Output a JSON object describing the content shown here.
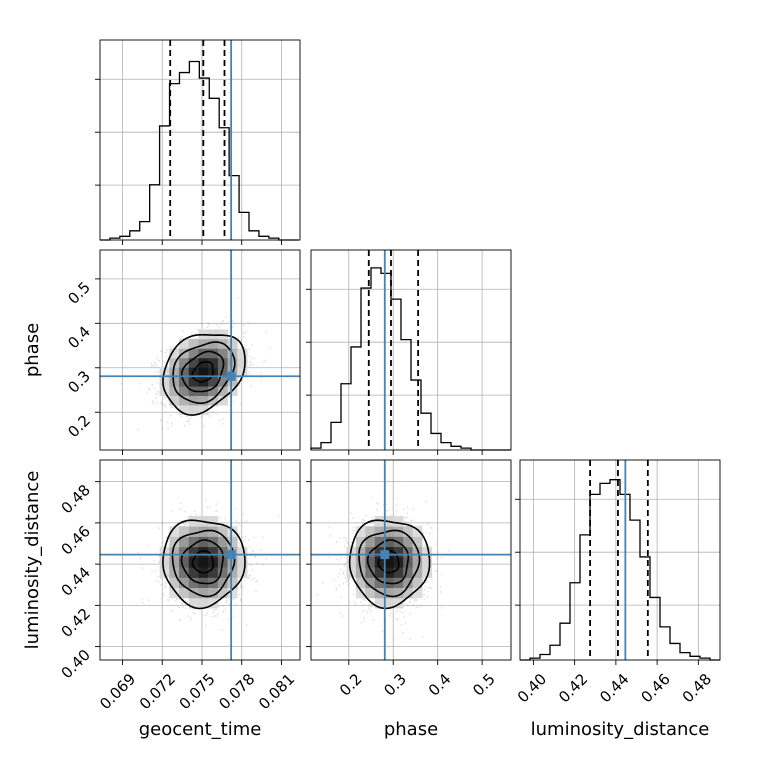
{
  "chart_data": {
    "type": "corner",
    "parameters": [
      "geocent_time",
      "phase",
      "luminosity_distance"
    ],
    "truths": {
      "geocent_time": 0.0772,
      "phase": 0.281,
      "luminosity_distance": 0.4446
    },
    "quantiles": {
      "geocent_time": [
        0.0726,
        0.0751,
        0.0767
      ],
      "phase": [
        0.245,
        0.295,
        0.356
      ],
      "luminosity_distance": [
        0.4275,
        0.441,
        0.4555
      ]
    },
    "axes": {
      "geocent_time": {
        "range": [
          0.0673,
          0.0824
        ],
        "ticks": [
          "0.069",
          "0.072",
          "0.075",
          "0.078",
          "0.081"
        ]
      },
      "phase": {
        "range": [
          0.115,
          0.565
        ],
        "ticks": [
          "0.2",
          "0.3",
          "0.4",
          "0.5"
        ]
      },
      "luminosity_distance": {
        "range": [
          0.3935,
          0.4905
        ],
        "ticks": [
          "0.40",
          "0.42",
          "0.44",
          "0.46",
          "0.48"
        ]
      }
    },
    "histograms": {
      "geocent_time": {
        "edges": [
          0.0673,
          0.06805,
          0.0688,
          0.06955,
          0.0703,
          0.07105,
          0.0718,
          0.07255,
          0.0733,
          0.07405,
          0.0748,
          0.07555,
          0.0763,
          0.07705,
          0.0778,
          0.07855,
          0.0793,
          0.08005,
          0.0808,
          0.08155,
          0.0823
        ],
        "counts": [
          0,
          0.01,
          0.02,
          0.05,
          0.1,
          0.3,
          0.62,
          0.85,
          0.91,
          0.97,
          0.88,
          0.77,
          0.61,
          0.35,
          0.15,
          0.05,
          0.02,
          0.01,
          0.0,
          0
        ]
      },
      "phase": {
        "edges": [
          0.115,
          0.1375,
          0.16,
          0.1825,
          0.205,
          0.2275,
          0.25,
          0.2725,
          0.295,
          0.3175,
          0.34,
          0.3625,
          0.385,
          0.4075,
          0.43,
          0.4525,
          0.475,
          0.4975,
          0.52,
          0.5425,
          0.565
        ],
        "counts": [
          0.01,
          0.04,
          0.15,
          0.36,
          0.56,
          0.88,
          0.99,
          0.96,
          0.82,
          0.6,
          0.38,
          0.2,
          0.09,
          0.04,
          0.02,
          0.01,
          0.0,
          0,
          0,
          0
        ]
      },
      "luminosity_distance": {
        "edges": [
          0.3935,
          0.39835,
          0.4032,
          0.40805,
          0.4129,
          0.41775,
          0.4226,
          0.42745,
          0.4323,
          0.43715,
          0.442,
          0.44685,
          0.4517,
          0.45655,
          0.4614,
          0.46625,
          0.4711,
          0.47595,
          0.4808,
          0.48565,
          0.4905
        ],
        "counts": [
          0.0,
          0.01,
          0.03,
          0.08,
          0.2,
          0.42,
          0.68,
          0.9,
          0.96,
          0.98,
          0.9,
          0.76,
          0.56,
          0.34,
          0.18,
          0.09,
          0.04,
          0.02,
          0.01,
          0
        ]
      }
    },
    "density_2d": {
      "geocent_time_phase": {
        "center": [
          0.0751,
          0.2905
        ],
        "sigma": [
          0.00155,
          0.045
        ],
        "correlation": 0.25
      },
      "geocent_time_luminosity_distance": {
        "center": [
          0.0751,
          0.441
        ],
        "sigma": [
          0.00155,
          0.0105
        ],
        "correlation": 0.0
      },
      "phase_luminosity_distance": {
        "center": [
          0.2905,
          0.441
        ],
        "sigma": [
          0.045,
          0.0105
        ],
        "correlation": 0.0
      }
    },
    "grid": true,
    "truth_color": "#4682b4"
  }
}
